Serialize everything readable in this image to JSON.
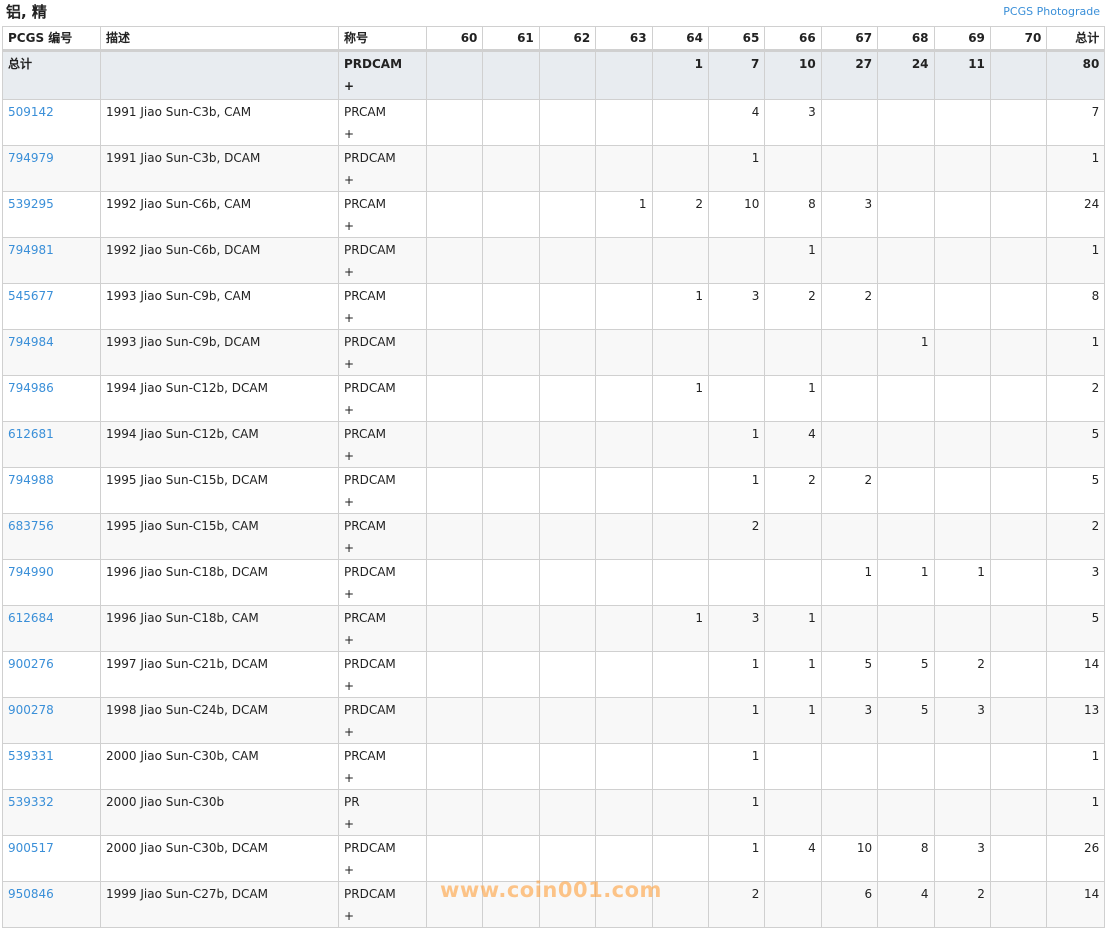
{
  "title": "铝, 精",
  "photograde_link": "PCGS Photograde",
  "headers": [
    "PCGS 编号",
    "描述",
    "称号",
    "60",
    "61",
    "62",
    "63",
    "64",
    "65",
    "66",
    "67",
    "68",
    "69",
    "70",
    "总计"
  ],
  "total_row": {
    "label": "总计",
    "designation": "PRDCAM\n+",
    "counts": [
      "",
      "",
      "",
      "",
      "1",
      "7",
      "10",
      "27",
      "24",
      "11",
      ""
    ],
    "total": "80"
  },
  "rows": [
    {
      "id": "509142",
      "desc": "1991 Jiao Sun-C3b, CAM",
      "designation": "PRCAM\n+",
      "counts": [
        "",
        "",
        "",
        "",
        "",
        "4",
        "3",
        "",
        "",
        "",
        ""
      ],
      "total": "7"
    },
    {
      "id": "794979",
      "desc": "1991 Jiao Sun-C3b, DCAM",
      "designation": "PRDCAM\n+",
      "counts": [
        "",
        "",
        "",
        "",
        "",
        "1",
        "",
        "",
        "",
        "",
        ""
      ],
      "total": "1"
    },
    {
      "id": "539295",
      "desc": "1992 Jiao Sun-C6b, CAM",
      "designation": "PRCAM\n+",
      "counts": [
        "",
        "",
        "",
        "1",
        "2",
        "10",
        "8",
        "3",
        "",
        "",
        ""
      ],
      "total": "24"
    },
    {
      "id": "794981",
      "desc": "1992 Jiao Sun-C6b, DCAM",
      "designation": "PRDCAM\n+",
      "counts": [
        "",
        "",
        "",
        "",
        "",
        "",
        "1",
        "",
        "",
        "",
        ""
      ],
      "total": "1"
    },
    {
      "id": "545677",
      "desc": "1993 Jiao Sun-C9b, CAM",
      "designation": "PRCAM\n+",
      "counts": [
        "",
        "",
        "",
        "",
        "1",
        "3",
        "2",
        "2",
        "",
        "",
        ""
      ],
      "total": "8"
    },
    {
      "id": "794984",
      "desc": "1993 Jiao Sun-C9b, DCAM",
      "designation": "PRDCAM\n+",
      "counts": [
        "",
        "",
        "",
        "",
        "",
        "",
        "",
        "",
        "1",
        "",
        ""
      ],
      "total": "1"
    },
    {
      "id": "794986",
      "desc": "1994 Jiao Sun-C12b, DCAM",
      "designation": "PRDCAM\n+",
      "counts": [
        "",
        "",
        "",
        "",
        "1",
        "",
        "1",
        "",
        "",
        "",
        ""
      ],
      "total": "2"
    },
    {
      "id": "612681",
      "desc": "1994 Jiao Sun-C12b, CAM",
      "designation": "PRCAM\n+",
      "counts": [
        "",
        "",
        "",
        "",
        "",
        "1",
        "4",
        "",
        "",
        "",
        ""
      ],
      "total": "5"
    },
    {
      "id": "794988",
      "desc": "1995 Jiao Sun-C15b, DCAM",
      "designation": "PRDCAM\n+",
      "counts": [
        "",
        "",
        "",
        "",
        "",
        "1",
        "2",
        "2",
        "",
        "",
        ""
      ],
      "total": "5"
    },
    {
      "id": "683756",
      "desc": "1995 Jiao Sun-C15b, CAM",
      "designation": "PRCAM\n+",
      "counts": [
        "",
        "",
        "",
        "",
        "",
        "2",
        "",
        "",
        "",
        "",
        ""
      ],
      "total": "2"
    },
    {
      "id": "794990",
      "desc": "1996 Jiao Sun-C18b, DCAM",
      "designation": "PRDCAM\n+",
      "counts": [
        "",
        "",
        "",
        "",
        "",
        "",
        "",
        "1",
        "1",
        "1",
        ""
      ],
      "total": "3"
    },
    {
      "id": "612684",
      "desc": "1996 Jiao Sun-C18b, CAM",
      "designation": "PRCAM\n+",
      "counts": [
        "",
        "",
        "",
        "",
        "1",
        "3",
        "1",
        "",
        "",
        "",
        ""
      ],
      "total": "5"
    },
    {
      "id": "900276",
      "desc": "1997 Jiao Sun-C21b, DCAM",
      "designation": "PRDCAM\n+",
      "counts": [
        "",
        "",
        "",
        "",
        "",
        "1",
        "1",
        "5",
        "5",
        "2",
        ""
      ],
      "total": "14"
    },
    {
      "id": "900278",
      "desc": "1998 Jiao Sun-C24b, DCAM",
      "designation": "PRDCAM\n+",
      "counts": [
        "",
        "",
        "",
        "",
        "",
        "1",
        "1",
        "3",
        "5",
        "3",
        ""
      ],
      "total": "13"
    },
    {
      "id": "539331",
      "desc": "2000 Jiao Sun-C30b, CAM",
      "designation": "PRCAM\n+",
      "counts": [
        "",
        "",
        "",
        "",
        "",
        "1",
        "",
        "",
        "",
        "",
        ""
      ],
      "total": "1"
    },
    {
      "id": "539332",
      "desc": "2000 Jiao Sun-C30b",
      "designation": "PR\n+",
      "counts": [
        "",
        "",
        "",
        "",
        "",
        "1",
        "",
        "",
        "",
        "",
        ""
      ],
      "total": "1"
    },
    {
      "id": "900517",
      "desc": "2000 Jiao Sun-C30b, DCAM",
      "designation": "PRDCAM\n+",
      "counts": [
        "",
        "",
        "",
        "",
        "",
        "1",
        "4",
        "10",
        "8",
        "3",
        ""
      ],
      "total": "26"
    },
    {
      "id": "950846",
      "desc": "1999 Jiao Sun-C27b, DCAM",
      "designation": "PRDCAM\n+",
      "counts": [
        "",
        "",
        "",
        "",
        "",
        "2",
        "",
        "6",
        "4",
        "2",
        ""
      ],
      "total": "14"
    }
  ],
  "watermark": "www.coin001.com",
  "colors": {
    "link": "#3a8fd8",
    "total_row_bg": "#e8ecf0",
    "border": "#d0d0d0"
  }
}
